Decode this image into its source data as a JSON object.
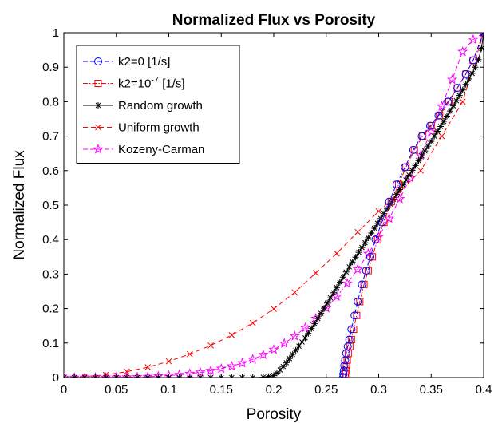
{
  "chart_data": {
    "type": "line",
    "title": "Normalized Flux vs Porosity",
    "xlabel": "Porosity",
    "ylabel": "Normalized Flux",
    "xlim": [
      0,
      0.4
    ],
    "ylim": [
      0,
      1
    ],
    "grid": false,
    "legend_position": "top-left",
    "x_ticks": [
      "0",
      "0.05",
      "0.1",
      "0.15",
      "0.2",
      "0.25",
      "0.3",
      "0.35",
      "0.4"
    ],
    "y_ticks": [
      "0",
      "0.1",
      "0.2",
      "0.3",
      "0.4",
      "0.5",
      "0.6",
      "0.7",
      "0.8",
      "0.9",
      "1"
    ],
    "series": [
      {
        "name": "k2=0 [1/s]",
        "name_base": "k2=0 [1/s]",
        "color": "#0000ff",
        "marker": "circle",
        "dash": "6,3",
        "x": [
          0.266,
          0.2663,
          0.2667,
          0.2672,
          0.268,
          0.269,
          0.2705,
          0.272,
          0.274,
          0.277,
          0.28,
          0.284,
          0.288,
          0.292,
          0.297,
          0.303,
          0.31,
          0.317,
          0.325,
          0.333,
          0.341,
          0.349,
          0.357,
          0.366,
          0.375,
          0.383,
          0.39,
          0.4
        ],
        "y": [
          0.0,
          0.01,
          0.02,
          0.035,
          0.05,
          0.07,
          0.09,
          0.11,
          0.14,
          0.18,
          0.22,
          0.27,
          0.31,
          0.35,
          0.4,
          0.45,
          0.51,
          0.56,
          0.61,
          0.66,
          0.7,
          0.73,
          0.76,
          0.8,
          0.84,
          0.88,
          0.92,
          1.0
        ]
      },
      {
        "name": "k2=10",
        "name_sup": "-7",
        "name_suffix": " [1/s]",
        "color": "#ff0000",
        "marker": "square",
        "dash": "6,2,1.5,2",
        "x": [
          0.268,
          0.2683,
          0.2687,
          0.2692,
          0.27,
          0.271,
          0.2725,
          0.274,
          0.276,
          0.279,
          0.282,
          0.286,
          0.29,
          0.294,
          0.299,
          0.305,
          0.312,
          0.319,
          0.326,
          0.334,
          0.342,
          0.35,
          0.358,
          0.367,
          0.375,
          0.383,
          0.39,
          0.4
        ],
        "y": [
          0.0,
          0.01,
          0.02,
          0.035,
          0.05,
          0.07,
          0.09,
          0.11,
          0.14,
          0.18,
          0.22,
          0.27,
          0.31,
          0.35,
          0.4,
          0.45,
          0.51,
          0.56,
          0.61,
          0.66,
          0.7,
          0.73,
          0.76,
          0.8,
          0.84,
          0.88,
          0.92,
          1.0
        ]
      },
      {
        "name": "Random growth",
        "color": "#000000",
        "marker": "star",
        "dash": "",
        "x": [
          0,
          0.01,
          0.02,
          0.03,
          0.04,
          0.05,
          0.06,
          0.07,
          0.08,
          0.09,
          0.1,
          0.11,
          0.12,
          0.13,
          0.14,
          0.15,
          0.16,
          0.17,
          0.18,
          0.19,
          0.195,
          0.2,
          0.203,
          0.206,
          0.209,
          0.212,
          0.215,
          0.218,
          0.221,
          0.224,
          0.227,
          0.23,
          0.233,
          0.236,
          0.239,
          0.242,
          0.245,
          0.248,
          0.251,
          0.254,
          0.257,
          0.26,
          0.263,
          0.266,
          0.269,
          0.272,
          0.275,
          0.278,
          0.281,
          0.284,
          0.287,
          0.29,
          0.293,
          0.296,
          0.299,
          0.302,
          0.305,
          0.308,
          0.311,
          0.314,
          0.317,
          0.32,
          0.323,
          0.326,
          0.329,
          0.332,
          0.335,
          0.338,
          0.341,
          0.344,
          0.347,
          0.35,
          0.353,
          0.356,
          0.359,
          0.362,
          0.365,
          0.368,
          0.371,
          0.374,
          0.377,
          0.38,
          0.383,
          0.386,
          0.389,
          0.392,
          0.395,
          0.398,
          0.4
        ],
        "y": [
          0,
          0,
          0,
          0,
          0,
          0,
          0,
          0,
          0,
          0,
          0,
          0,
          0,
          0,
          0,
          0,
          0,
          0,
          0,
          0.001,
          0.003,
          0.006,
          0.013,
          0.022,
          0.032,
          0.043,
          0.055,
          0.067,
          0.079,
          0.091,
          0.103,
          0.115,
          0.128,
          0.142,
          0.156,
          0.171,
          0.186,
          0.201,
          0.216,
          0.231,
          0.246,
          0.261,
          0.276,
          0.291,
          0.306,
          0.321,
          0.335,
          0.349,
          0.363,
          0.377,
          0.391,
          0.405,
          0.419,
          0.433,
          0.447,
          0.461,
          0.475,
          0.489,
          0.503,
          0.517,
          0.531,
          0.545,
          0.559,
          0.573,
          0.587,
          0.601,
          0.615,
          0.629,
          0.643,
          0.657,
          0.671,
          0.685,
          0.7,
          0.714,
          0.728,
          0.743,
          0.758,
          0.773,
          0.788,
          0.803,
          0.818,
          0.834,
          0.85,
          0.866,
          0.882,
          0.9,
          0.922,
          0.955,
          1.0
        ]
      },
      {
        "name": "Uniform growth",
        "color": "#ff0000",
        "marker": "x",
        "dash": "6,4",
        "x": [
          0,
          0.02,
          0.04,
          0.06,
          0.08,
          0.1,
          0.12,
          0.14,
          0.16,
          0.18,
          0.2,
          0.22,
          0.24,
          0.26,
          0.28,
          0.3,
          0.32,
          0.34,
          0.36,
          0.38,
          0.4
        ],
        "y": [
          0,
          0.003,
          0.008,
          0.017,
          0.03,
          0.047,
          0.068,
          0.093,
          0.123,
          0.158,
          0.199,
          0.247,
          0.303,
          0.36,
          0.422,
          0.482,
          0.538,
          0.6,
          0.7,
          0.8,
          1.0
        ]
      },
      {
        "name": "Kozeny-Carman",
        "color": "#ff00ff",
        "marker": "pentagram",
        "dash": "6,3",
        "x": [
          0,
          0.01,
          0.02,
          0.03,
          0.04,
          0.05,
          0.06,
          0.07,
          0.08,
          0.09,
          0.1,
          0.11,
          0.12,
          0.13,
          0.14,
          0.15,
          0.16,
          0.17,
          0.18,
          0.19,
          0.2,
          0.21,
          0.22,
          0.23,
          0.24,
          0.25,
          0.26,
          0.27,
          0.28,
          0.29,
          0.3,
          0.31,
          0.32,
          0.33,
          0.34,
          0.35,
          0.36,
          0.37,
          0.38,
          0.39,
          0.4
        ],
        "y": [
          0,
          0,
          0,
          0.0001,
          0.0002,
          0.0005,
          0.0009,
          0.0016,
          0.0026,
          0.004,
          0.0058,
          0.0082,
          0.0112,
          0.015,
          0.02,
          0.026,
          0.033,
          0.042,
          0.053,
          0.066,
          0.081,
          0.099,
          0.12,
          0.144,
          0.171,
          0.201,
          0.235,
          0.273,
          0.314,
          0.359,
          0.408,
          0.461,
          0.518,
          0.579,
          0.644,
          0.713,
          0.787,
          0.864,
          0.945,
          0.98,
          1.0
        ]
      }
    ]
  }
}
